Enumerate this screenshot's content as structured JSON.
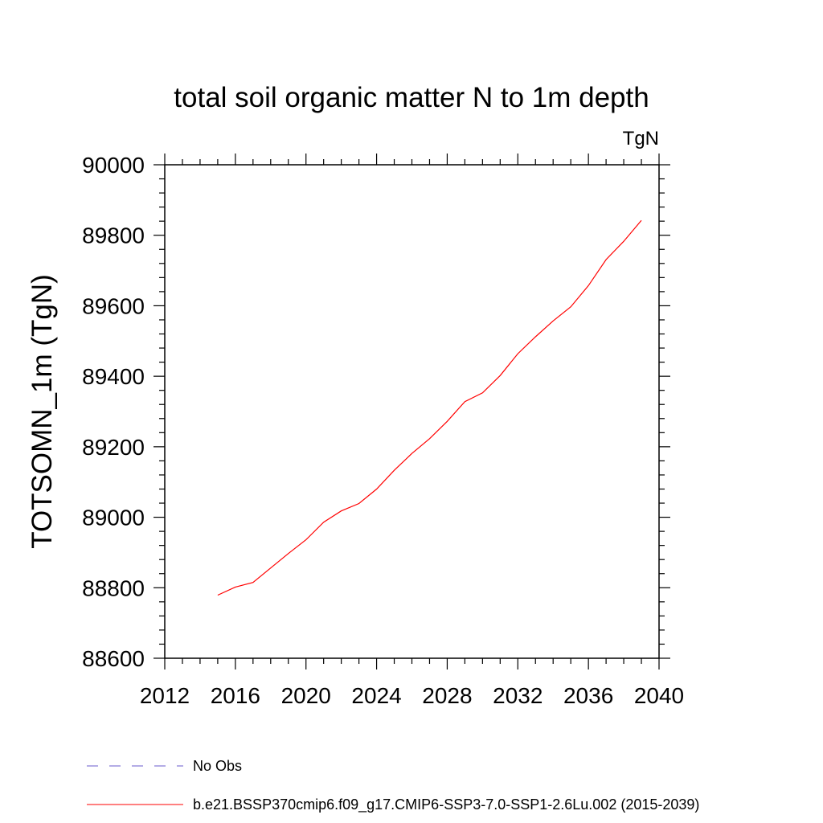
{
  "chart_data": {
    "type": "line",
    "title": "total soil organic matter N to 1m depth",
    "units_label": "TgN",
    "xlabel": "",
    "ylabel": "TOTSOMN_1m  (TgN)",
    "xlim": [
      2012,
      2040
    ],
    "ylim": [
      88600,
      90000
    ],
    "xticks": [
      "2012",
      "2016",
      "2020",
      "2024",
      "2028",
      "2032",
      "2036",
      "2040"
    ],
    "yticks": [
      "88600",
      "88800",
      "89000",
      "89200",
      "89400",
      "89600",
      "89800",
      "90000"
    ],
    "grid": false,
    "legend_position": "bottom",
    "legend": [
      {
        "label": "No Obs",
        "color": "#6a5acd",
        "dash": "dashed"
      },
      {
        "label": "b.e21.BSSP370cmip6.f09_g17.CMIP6-SSP3-7.0-SSP1-2.6Lu.002 (2015-2039)",
        "color": "#ff0000",
        "dash": "solid"
      }
    ],
    "series": [
      {
        "name": "b.e21.BSSP370cmip6.f09_g17.CMIP6-SSP3-7.0-SSP1-2.6Lu.002 (2015-2039)",
        "color": "#ff0000",
        "x": [
          2015,
          2016,
          2017,
          2018,
          2019,
          2020,
          2021,
          2022,
          2023,
          2024,
          2025,
          2026,
          2027,
          2028,
          2029,
          2030,
          2031,
          2032,
          2033,
          2034,
          2035,
          2036,
          2037,
          2038,
          2039
        ],
        "y": [
          88779,
          88802,
          88815,
          88856,
          88897,
          88936,
          88986,
          89018,
          89039,
          89080,
          89133,
          89181,
          89223,
          89272,
          89328,
          89353,
          89402,
          89464,
          89512,
          89557,
          89597,
          89657,
          89731,
          89783,
          89842
        ]
      }
    ]
  }
}
